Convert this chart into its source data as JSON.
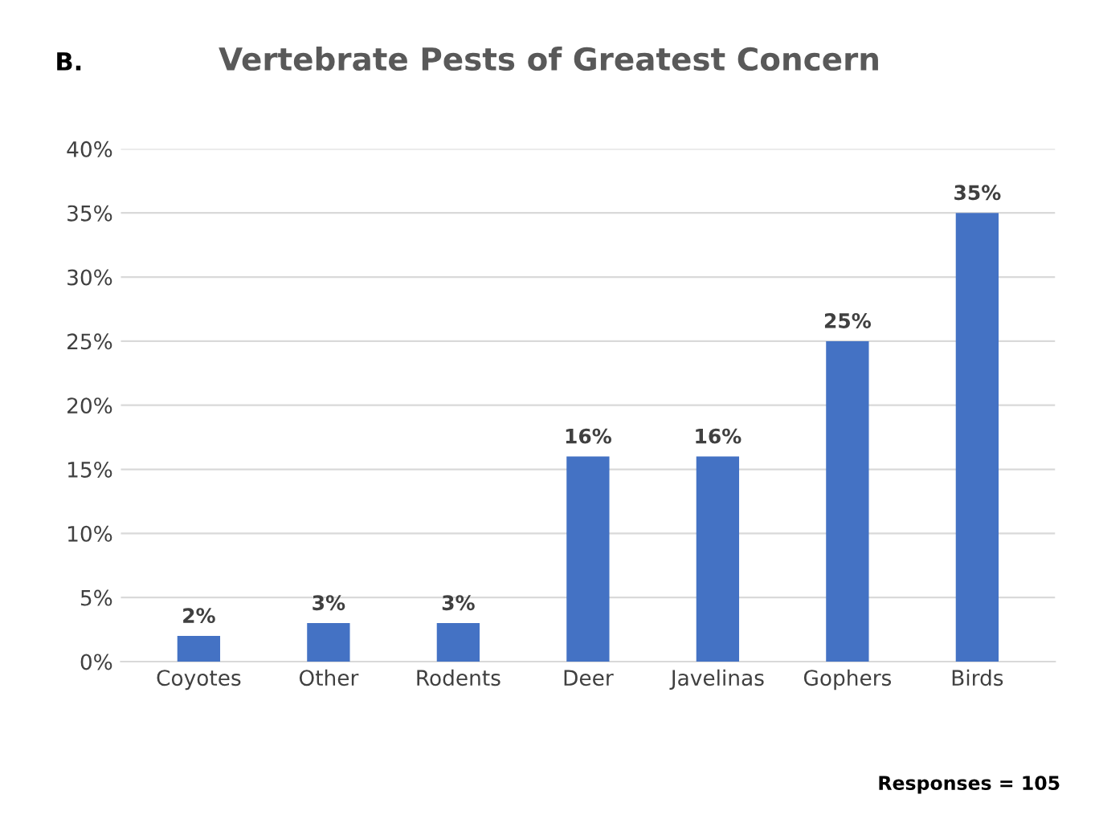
{
  "chart_data": {
    "type": "bar",
    "title": "Vertebrate Pests of Greatest Concern",
    "categories": [
      "Coyotes",
      "Other",
      "Rodents",
      "Deer",
      "Javelinas",
      "Gophers",
      "Birds"
    ],
    "values": [
      2,
      3,
      3,
      16,
      16,
      25,
      35
    ],
    "value_labels": [
      "2%",
      "3%",
      "3%",
      "16%",
      "16%",
      "25%",
      "35%"
    ],
    "color": "#4472c4",
    "ylim": [
      0,
      40
    ],
    "yticks": [
      {
        "value": 0,
        "label": "0%"
      },
      {
        "value": 5,
        "label": "5%"
      },
      {
        "value": 10,
        "label": "10%"
      },
      {
        "value": 15,
        "label": "15%"
      },
      {
        "value": 20,
        "label": "20%"
      },
      {
        "value": 25,
        "label": "25%"
      },
      {
        "value": 30,
        "label": "30%"
      },
      {
        "value": 35,
        "label": "35%"
      },
      {
        "value": 40,
        "label": "40%"
      }
    ],
    "grid": "y",
    "annotations": [
      "B.",
      "Responses = 105"
    ]
  }
}
